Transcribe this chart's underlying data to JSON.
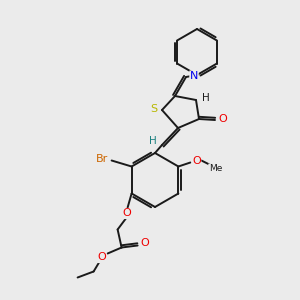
{
  "background_color": "#ebebeb",
  "bond_color": "#1a1a1a",
  "atom_colors": {
    "S": "#b8b800",
    "N": "#0000ee",
    "O": "#ee0000",
    "Br": "#cc6600",
    "H": "#1a8080",
    "C": "#1a1a1a"
  },
  "figsize": [
    3.0,
    3.0
  ],
  "dpi": 100
}
